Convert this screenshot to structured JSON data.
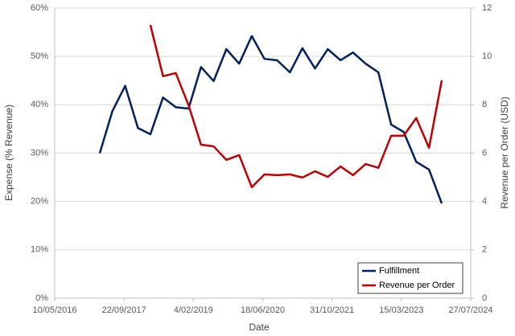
{
  "chart_data": {
    "type": "line",
    "x_label": "Date",
    "y_label": "Expense (% Revenue)",
    "y2_label": "Revenue per Order (USD)",
    "x": [
      "2017-03-31",
      "2017-06-30",
      "2017-09-30",
      "2017-12-31",
      "2018-03-31",
      "2018-06-30",
      "2018-09-30",
      "2018-12-31",
      "2019-03-31",
      "2019-06-30",
      "2019-09-30",
      "2019-12-31",
      "2020-03-31",
      "2020-06-30",
      "2020-09-30",
      "2020-12-31",
      "2021-03-31",
      "2021-06-30",
      "2021-09-30",
      "2021-12-31",
      "2022-03-31",
      "2022-06-30",
      "2022-09-30",
      "2022-12-31",
      "2023-03-31",
      "2023-06-30",
      "2023-09-30",
      "2023-12-31"
    ],
    "series": [
      {
        "name": "Fulfillment",
        "color": "#002060",
        "axis": "y",
        "values": [
          30.0,
          38.7,
          43.9,
          35.2,
          33.9,
          41.5,
          39.5,
          39.2,
          47.8,
          44.9,
          51.5,
          48.5,
          54.2,
          49.5,
          49.2,
          46.7,
          51.7,
          47.5,
          51.5,
          49.2,
          50.8,
          48.5,
          46.7,
          35.9,
          34.4,
          28.2,
          26.6,
          19.6
        ]
      },
      {
        "name": "Revenue per Order",
        "color": "#c00000",
        "axis": "y2",
        "values": [
          null,
          null,
          null,
          null,
          11.3,
          9.18,
          9.31,
          7.98,
          6.35,
          6.28,
          5.72,
          5.92,
          4.59,
          5.12,
          5.09,
          5.12,
          4.99,
          5.25,
          5.02,
          5.45,
          5.09,
          5.55,
          5.39,
          6.72,
          6.72,
          7.45,
          6.22,
          9.01
        ]
      }
    ],
    "xlim": [
      "2016-05-10",
      "2024-07-27"
    ],
    "xticks": [
      {
        "value": "2016-05-10",
        "label": "10/05/2016"
      },
      {
        "value": "2017-09-22",
        "label": "22/09/2017"
      },
      {
        "value": "2019-02-04",
        "label": "4/02/2019"
      },
      {
        "value": "2020-06-18",
        "label": "18/06/2020"
      },
      {
        "value": "2021-10-31",
        "label": "31/10/2021"
      },
      {
        "value": "2023-03-15",
        "label": "15/03/2023"
      },
      {
        "value": "2024-07-27",
        "label": "27/07/2024"
      }
    ],
    "ylim": [
      0,
      60
    ],
    "yticks": [
      {
        "value": 0,
        "label": "0%"
      },
      {
        "value": 10,
        "label": "10%"
      },
      {
        "value": 20,
        "label": "20%"
      },
      {
        "value": 30,
        "label": "30%"
      },
      {
        "value": 40,
        "label": "40%"
      },
      {
        "value": 50,
        "label": "50%"
      },
      {
        "value": 60,
        "label": "60%"
      }
    ],
    "y2lim": [
      0,
      12
    ],
    "y2ticks": [
      0,
      2,
      4,
      6,
      8,
      10,
      12
    ],
    "grid": true,
    "legend": "lower right"
  }
}
